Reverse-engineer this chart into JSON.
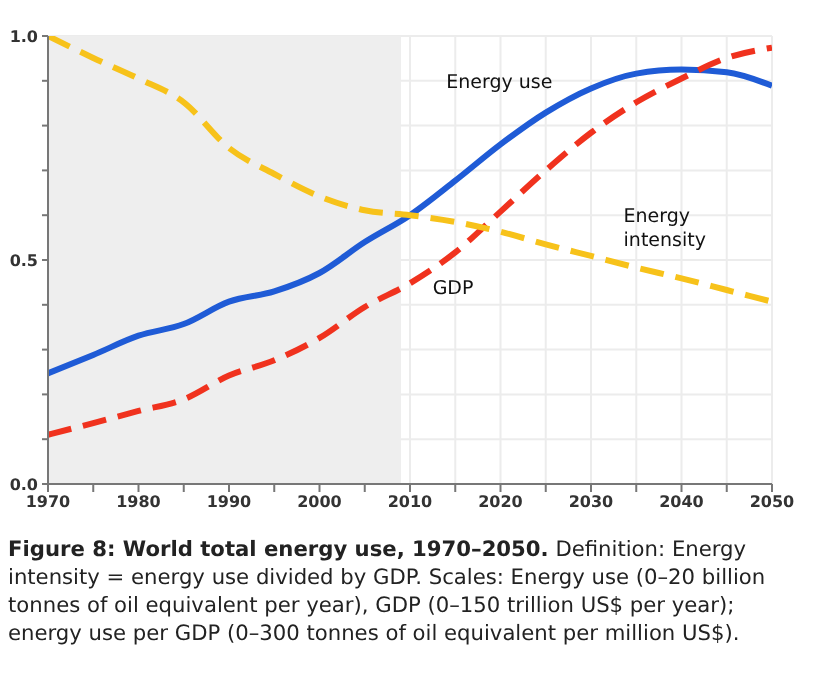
{
  "chart_data": {
    "type": "line",
    "title": "Figure 8: World total energy use, 1970–2050.",
    "annotations": [
      "Definition: Energy intensity = energy use divided by GDP. Scales: Energy use (0–20 billion tonnes of oil equivalent per year), GDP (0–150 trillion US$ per year); energy use per GDP (0–300 tonnes of oil equivalent per million US$)."
    ],
    "x": [
      1970,
      1975,
      1980,
      1985,
      1990,
      1995,
      2000,
      2005,
      2010,
      2015,
      2020,
      2025,
      2030,
      2035,
      2040,
      2045,
      2050
    ],
    "series": [
      {
        "name": "Energy use",
        "color": "#1f5bd6",
        "line_style": "solid",
        "values": [
          0.247,
          0.288,
          0.331,
          0.357,
          0.407,
          0.43,
          0.471,
          0.54,
          0.6,
          0.677,
          0.758,
          0.829,
          0.883,
          0.916,
          0.925,
          0.919,
          0.889
        ]
      },
      {
        "name": "GDP",
        "color": "#f0321e",
        "line_style": "dashed",
        "values": [
          0.11,
          0.136,
          0.163,
          0.189,
          0.242,
          0.276,
          0.326,
          0.395,
          0.448,
          0.517,
          0.608,
          0.7,
          0.784,
          0.852,
          0.905,
          0.951,
          0.974
        ]
      },
      {
        "name": "Energy intensity",
        "color": "#f7c21a",
        "line_style": "dashed",
        "values": [
          1.0,
          0.951,
          0.905,
          0.852,
          0.75,
          0.692,
          0.642,
          0.611,
          0.6,
          0.585,
          0.563,
          0.535,
          0.509,
          0.483,
          0.459,
          0.433,
          0.407
        ]
      }
    ],
    "xlim": [
      1970,
      2050
    ],
    "xticks": [
      1970,
      {
        "value": 1975,
        "label": null
      },
      1980,
      {
        "value": 1985,
        "label": null
      },
      1990,
      {
        "value": 1995,
        "label": null
      },
      2000,
      {
        "value": 2005,
        "label": null
      },
      2010,
      {
        "value": 2015,
        "label": null
      },
      2020,
      {
        "value": 2025,
        "label": null
      },
      2030,
      {
        "value": 2035,
        "label": null
      },
      2040,
      {
        "value": 2045,
        "label": null
      },
      2050
    ],
    "ylim": [
      0,
      1
    ],
    "yticks": [
      {
        "value": 0,
        "label": "0.0"
      },
      {
        "value": 0.1,
        "label": null
      },
      {
        "value": 0.2,
        "label": null
      },
      {
        "value": 0.3,
        "label": null
      },
      {
        "value": 0.4,
        "label": null
      },
      {
        "value": 0.5,
        "label": "0.5"
      },
      {
        "value": 0.6,
        "label": null
      },
      {
        "value": 0.7,
        "label": null
      },
      {
        "value": 0.8,
        "label": null
      },
      {
        "value": 0.9,
        "label": null
      },
      {
        "value": 1,
        "label": "1.0"
      }
    ],
    "bands": [
      {
        "axis": "x",
        "from": 1970,
        "to": 2009,
        "color": "#eeeeee"
      }
    ],
    "grid": true,
    "marker": "none"
  }
}
